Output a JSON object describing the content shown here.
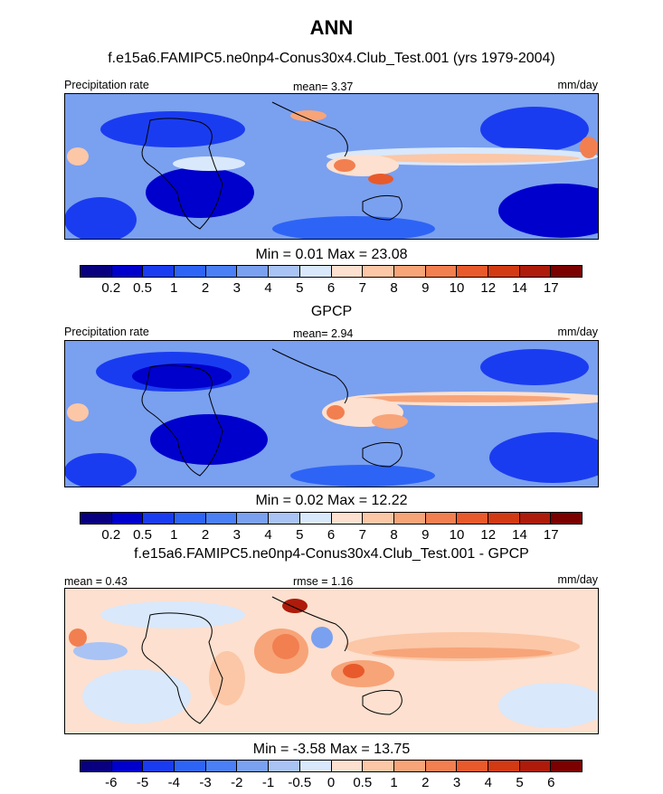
{
  "figure": {
    "main_title": "ANN",
    "units": "mm/day"
  },
  "panels": [
    {
      "title": "f.e15a6.FAMIPC5.ne0np4-Conus30x4.Club_Test.001 (yrs 1979-2004)",
      "left_label": "Precipitation rate",
      "center_label": "mean=  3.37",
      "right_label": "mm/day",
      "minmax": "Min =  0.01 Max =  23.08"
    },
    {
      "title": "GPCP",
      "left_label": "Precipitation rate",
      "center_label": "mean=  2.94",
      "right_label": "mm/day",
      "minmax": "Min =  0.02 Max =  12.22"
    },
    {
      "title": "f.e15a6.FAMIPC5.ne0np4-Conus30x4.Club_Test.001 - GPCP",
      "left_label": "mean =  0.43",
      "center_label": "rmse =  1.16",
      "right_label": "mm/day",
      "minmax": "Min =  -3.58 Max =  13.75"
    }
  ],
  "chart_data": [
    {
      "type": "heatmap",
      "title": "f.e15a6.FAMIPC5.ne0np4-Conus30x4.Club_Test.001 (yrs 1979-2004)",
      "variable": "Precipitation rate",
      "units": "mm/day",
      "mean": 3.37,
      "min": 0.01,
      "max": 23.08,
      "colorbar_levels": [
        "0.2",
        "0.5",
        "1",
        "2",
        "3",
        "4",
        "5",
        "6",
        "7",
        "8",
        "9",
        "10",
        "12",
        "14",
        "17"
      ],
      "colorbar_colors": [
        "#08007e",
        "#0000cc",
        "#1a3cf0",
        "#2e64f5",
        "#4a7ff5",
        "#7aa0f0",
        "#a9c3f5",
        "#d9e8fb",
        "#fde0cf",
        "#fbc7a7",
        "#f7a479",
        "#f27f50",
        "#e85a2b",
        "#d23a14",
        "#ae1b0a",
        "#7b0000"
      ]
    },
    {
      "type": "heatmap",
      "title": "GPCP",
      "variable": "Precipitation rate",
      "units": "mm/day",
      "mean": 2.94,
      "min": 0.02,
      "max": 12.22,
      "colorbar_levels": [
        "0.2",
        "0.5",
        "1",
        "2",
        "3",
        "4",
        "5",
        "6",
        "7",
        "8",
        "9",
        "10",
        "12",
        "14",
        "17"
      ],
      "colorbar_colors": [
        "#08007e",
        "#0000cc",
        "#1a3cf0",
        "#2e64f5",
        "#4a7ff5",
        "#7aa0f0",
        "#a9c3f5",
        "#d9e8fb",
        "#fde0cf",
        "#fbc7a7",
        "#f7a479",
        "#f27f50",
        "#e85a2b",
        "#d23a14",
        "#ae1b0a",
        "#7b0000"
      ]
    },
    {
      "type": "heatmap",
      "title": "f.e15a6.FAMIPC5.ne0np4-Conus30x4.Club_Test.001 - GPCP",
      "units": "mm/day",
      "mean": 0.43,
      "rmse": 1.16,
      "min": -3.58,
      "max": 13.75,
      "colorbar_levels": [
        "-6",
        "-5",
        "-4",
        "-3",
        "-2",
        "-1",
        "-0.5",
        "0",
        "0.5",
        "1",
        "2",
        "3",
        "4",
        "5",
        "6"
      ],
      "colorbar_colors": [
        "#08007e",
        "#0000cc",
        "#1a3cf0",
        "#2e64f5",
        "#4a7ff5",
        "#7aa0f0",
        "#a9c3f5",
        "#d9e8fb",
        "#fde0cf",
        "#fbc7a7",
        "#f7a479",
        "#f27f50",
        "#e85a2b",
        "#d23a14",
        "#ae1b0a",
        "#7b0000"
      ]
    }
  ]
}
